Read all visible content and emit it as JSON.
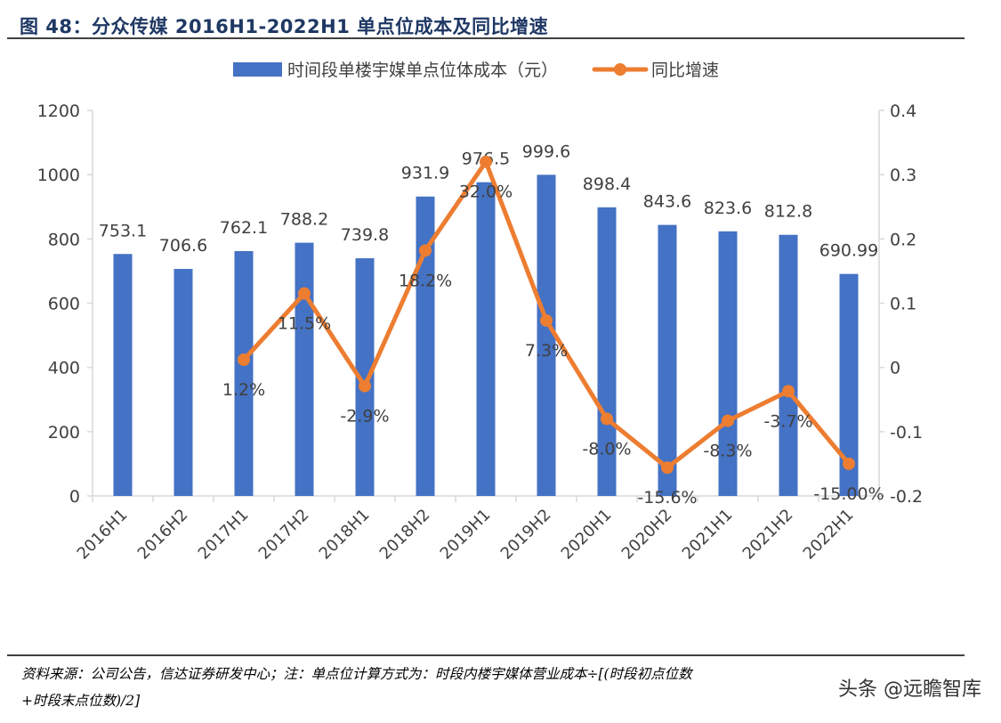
{
  "figure": {
    "title": "图 48：分众传媒 2016H1-2022H1 单点位成本及同比增速",
    "source_note_line1": "资料来源：公司公告，信达证券研发中心；注：单点位计算方式为：时段内楼宇媒体营业成本÷[(时段初点位数",
    "source_note_line2": "+时段末点位数)/2]",
    "watermark": "头条 @远瞻智库"
  },
  "colors": {
    "bar": "#4472c4",
    "line": "#ed7d31",
    "axis": "#d9d9d9",
    "text": "#404040"
  },
  "chart_data": {
    "type": "bar+line",
    "title": "",
    "categories": [
      "2016H1",
      "2016H2",
      "2017H1",
      "2017H2",
      "2018H1",
      "2018H2",
      "2019H1",
      "2019H2",
      "2020H1",
      "2020H2",
      "2021H1",
      "2021H2",
      "2022H1"
    ],
    "series": [
      {
        "name": "时间段单楼宇媒单点位体成本（元）",
        "type": "bar",
        "axis": "left",
        "values": [
          753.1,
          706.6,
          762.1,
          788.2,
          739.8,
          931.9,
          976.5,
          999.6,
          898.4,
          843.6,
          823.6,
          812.8,
          690.99
        ],
        "labels": [
          "753.1",
          "706.6",
          "762.1",
          "788.2",
          "739.8",
          "931.9",
          "976.5",
          "999.6",
          "898.4",
          "843.6",
          "823.6",
          "812.8",
          "690.99"
        ]
      },
      {
        "name": "同比增速",
        "type": "line",
        "axis": "right",
        "values": [
          null,
          null,
          0.012,
          0.115,
          -0.029,
          0.182,
          0.32,
          0.073,
          -0.08,
          -0.156,
          -0.083,
          -0.037,
          -0.15
        ],
        "labels": [
          null,
          null,
          "1.2%",
          "11.5%",
          "-2.9%",
          "18.2%",
          "32.0%",
          "7.3%",
          "-8.0%",
          "-15.6%",
          "-8.3%",
          "-3.7%",
          "-15.00%"
        ]
      }
    ],
    "y_left": {
      "min": 0,
      "max": 1200,
      "ticks": [
        0,
        200,
        400,
        600,
        800,
        1000,
        1200
      ],
      "tick_labels": [
        "0",
        "200",
        "400",
        "600",
        "800",
        "1000",
        "1200"
      ]
    },
    "y_right": {
      "min": -0.2,
      "max": 0.4,
      "ticks": [
        -0.2,
        -0.1,
        0,
        0.1,
        0.2,
        0.3,
        0.4
      ],
      "tick_labels": [
        "-0.2",
        "-0.1",
        "0",
        "0.1",
        "0.2",
        "0.3",
        "0.4"
      ]
    },
    "xlabel": "",
    "ylabel": "",
    "grid": false,
    "legend_position": "top-center"
  }
}
